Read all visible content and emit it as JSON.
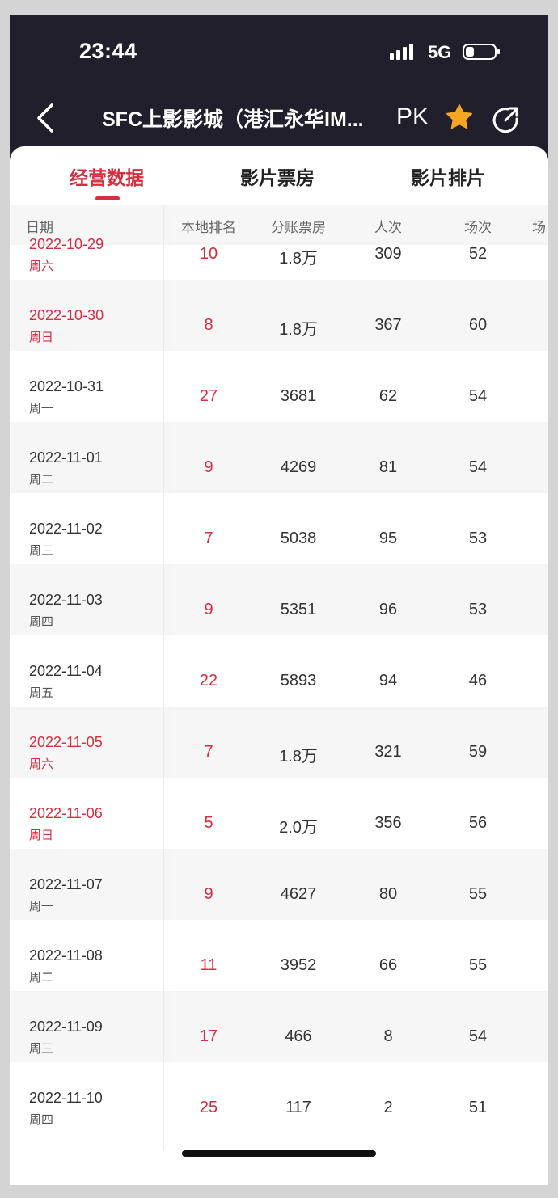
{
  "status": {
    "time": "23:44",
    "network": "5G"
  },
  "header": {
    "title": "SFC上影影城（港汇永华IM...",
    "pk_label": "PK"
  },
  "icons": {
    "back": "chevron-left-icon",
    "favorite": "star-icon",
    "share": "share-icon"
  },
  "colors": {
    "accent": "#d62d3f",
    "topbar": "#211f2c",
    "star": "#f5a623"
  },
  "tabs": [
    {
      "label": "经营数据",
      "active": true
    },
    {
      "label": "影片票房",
      "active": false
    },
    {
      "label": "影片排片",
      "active": false
    }
  ],
  "table": {
    "headers": [
      "日期",
      "本地排名",
      "分账票房",
      "人次",
      "场次",
      "场"
    ],
    "rows": [
      {
        "date": "2022-10-29",
        "weekday": "周六",
        "rank": "10",
        "box": "1.8万",
        "people": "309",
        "shows": "52",
        "weekend": true
      },
      {
        "date": "2022-10-30",
        "weekday": "周日",
        "rank": "8",
        "box": "1.8万",
        "people": "367",
        "shows": "60",
        "weekend": true
      },
      {
        "date": "2022-10-31",
        "weekday": "周一",
        "rank": "27",
        "box": "3681",
        "people": "62",
        "shows": "54",
        "weekend": false
      },
      {
        "date": "2022-11-01",
        "weekday": "周二",
        "rank": "9",
        "box": "4269",
        "people": "81",
        "shows": "54",
        "weekend": false
      },
      {
        "date": "2022-11-02",
        "weekday": "周三",
        "rank": "7",
        "box": "5038",
        "people": "95",
        "shows": "53",
        "weekend": false
      },
      {
        "date": "2022-11-03",
        "weekday": "周四",
        "rank": "9",
        "box": "5351",
        "people": "96",
        "shows": "53",
        "weekend": false
      },
      {
        "date": "2022-11-04",
        "weekday": "周五",
        "rank": "22",
        "box": "5893",
        "people": "94",
        "shows": "46",
        "weekend": false
      },
      {
        "date": "2022-11-05",
        "weekday": "周六",
        "rank": "7",
        "box": "1.8万",
        "people": "321",
        "shows": "59",
        "weekend": true
      },
      {
        "date": "2022-11-06",
        "weekday": "周日",
        "rank": "5",
        "box": "2.0万",
        "people": "356",
        "shows": "56",
        "weekend": true
      },
      {
        "date": "2022-11-07",
        "weekday": "周一",
        "rank": "9",
        "box": "4627",
        "people": "80",
        "shows": "55",
        "weekend": false
      },
      {
        "date": "2022-11-08",
        "weekday": "周二",
        "rank": "11",
        "box": "3952",
        "people": "66",
        "shows": "55",
        "weekend": false
      },
      {
        "date": "2022-11-09",
        "weekday": "周三",
        "rank": "17",
        "box": "466",
        "people": "8",
        "shows": "54",
        "weekend": false
      },
      {
        "date": "2022-11-10",
        "weekday": "周四",
        "rank": "25",
        "box": "117",
        "people": "2",
        "shows": "51",
        "weekend": false
      }
    ]
  }
}
